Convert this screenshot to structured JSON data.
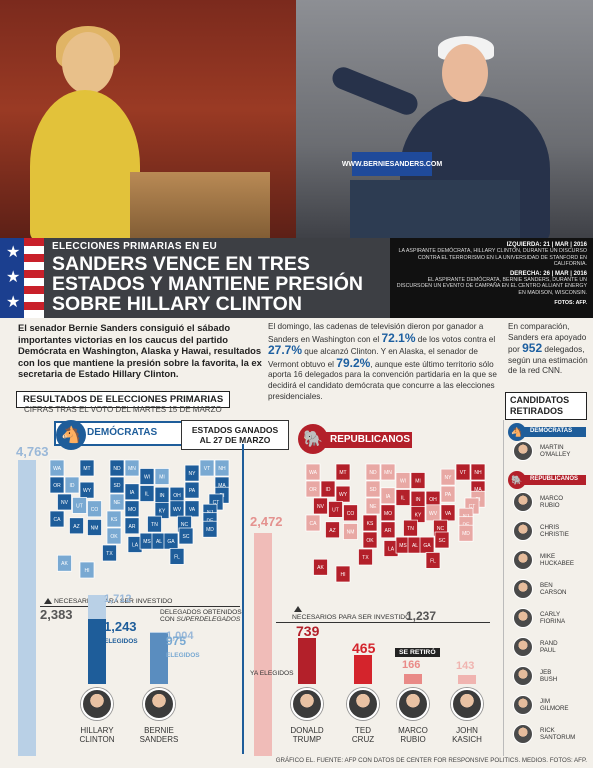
{
  "hero": {
    "sign_text": "WWW.BERNIESANDERS.COM",
    "kicker": "ELECCIONES PRIMARIAS EN EU",
    "headline": "SANDERS VENCE EN TRES ESTADOS Y MANTIENE PRESIÓN SOBRE HILLARY CLINTON",
    "caption_left_head": "IZQUIERDA: 21 | MAR | 2016",
    "caption_left": "LA ASPIRANTE DEMÓCRATA, HILLARY CLINTON, DURANTE UN DISCURSO CONTRA EL TERRORISMO EN LA UNIVERSIDAD DE STANFORD EN CALIFORNIA.",
    "caption_right_head": "DERECHA: 26 | MAR | 2016",
    "caption_right": "EL ASPIRANTE DEMÓCRATA, BERNIE SANDERS, DURANTE UN DISCURSOEN UN EVENTO DE CAMPAÑA EN EL CENTRO ALLIANT ENERGY EN MADISON, WISCONSIN.",
    "credit": "FOTOS: AFP."
  },
  "lede": "El senador Bernie Sanders consiguió el sábado importantes victorias en los caucus del partido Demócrata en Washington, Alaska y Hawai, resultados con los que mantiene la presión sobre la favorita, la ex secretaria de Estado Hillary Clinton.",
  "col2": {
    "a": "El domingo, las cadenas de televisión dieron por ganador a Sanders en Washington con el ",
    "p1": "72.1%",
    "b": " de los votos contra el ",
    "p2": "27.7%",
    "c": " que alcanzó Clinton. Y en Alaska, el senador de Vermont obtuvo el ",
    "p3": "79.2%",
    "d": ", aunque este último territorio sólo aporta 16 delegados para la convención partidaria en la que se decidirá el candidato demócrata que concurre a las elecciones presidenciales."
  },
  "col3": {
    "a": "En comparación, Sanders era apoyado por ",
    "n": "952",
    "b": " delegados, según una estimación de la red CNN."
  },
  "graphic": {
    "title": "RESULTADOS DE ELECCIONES PRIMARIAS",
    "subtitle": "CIFRAS TRAS EL VOTO DEL MARTES 15 DE MARZO",
    "estados": "ESTADOS GANADOS AL 27 DE MARZO",
    "dem_label": "DEMÓCRATAS",
    "rep_label": "REPUBLICANOS",
    "dem_total": "4,763",
    "rep_total": "2,472",
    "need_label_dem": "NECESARIOS PARA SER INVESTIDO",
    "need_label_rep": "NECESARIOS PARA SER INVESTIDO",
    "dem_need": "2,383",
    "rep_need": "1,237",
    "super_label_a": "DELEGADOS OBTENIDOS",
    "super_label_b": "CON",
    "super_label_c": "SUPERDELEGADOS",
    "elegidos": "ELEGIDOS",
    "ya_elegidos": "YA ELEGIDOS",
    "se_retiro": "SE RETIRÓ"
  },
  "chart_data": [
    {
      "type": "bar",
      "series": [
        {
          "name": "CON SUPERDELEGADOS",
          "values": [
            1712,
            1004
          ]
        },
        {
          "name": "ELEGIDOS",
          "values": [
            1243,
            975
          ]
        }
      ],
      "categories": [
        "HILLARY CLINTON",
        "BERNIE SANDERS"
      ],
      "totals": {
        "dem_total": 4763,
        "needed": 2383
      }
    },
    {
      "type": "bar",
      "categories": [
        "DONALD TRUMP",
        "TED CRUZ",
        "MARCO RUBIO",
        "JOHN KASICH"
      ],
      "values": [
        739,
        465,
        166,
        143
      ],
      "totals": {
        "rep_total": 2472,
        "needed": 1237
      }
    }
  ],
  "dem_bars": [
    {
      "super": "1,712",
      "elected": "1,243",
      "first": "HILLARY",
      "last": "CLINTON"
    },
    {
      "super": "1,004",
      "elected": "975",
      "first": "BERNIE",
      "last": "SANDERS"
    }
  ],
  "rep_bars": [
    {
      "value": "739",
      "first": "DONALD",
      "last": "TRUMP"
    },
    {
      "value": "465",
      "first": "TED",
      "last": "CRUZ"
    },
    {
      "value": "166",
      "first": "MARCO",
      "last": "RUBIO"
    },
    {
      "value": "143",
      "first": "JOHN",
      "last": "KASICH"
    }
  ],
  "map_labels": {
    "dem": [
      "WA",
      "OR",
      "MT",
      "ND",
      "SD",
      "MN",
      "WI",
      "MI",
      "NY",
      "VT",
      "NH",
      "MA",
      "RI",
      "CT",
      "NJ",
      "DE",
      "MD",
      "ID",
      "WY",
      "NE",
      "IA",
      "IL",
      "IN",
      "OH",
      "PA",
      "NV",
      "UT",
      "CO",
      "KS",
      "MO",
      "KY",
      "WV",
      "VA",
      "CA",
      "AZ",
      "NM",
      "OK",
      "AR",
      "TN",
      "NC",
      "SC",
      "TX",
      "LA",
      "MS",
      "AL",
      "GA",
      "FL",
      "AK",
      "HI"
    ],
    "rep": [
      "WA",
      "OR",
      "MT",
      "ND",
      "SD",
      "MN",
      "WI",
      "MI",
      "NY",
      "VT",
      "NH",
      "MA",
      "RI",
      "CT",
      "NJ",
      "DE",
      "MD",
      "ID",
      "WY",
      "NE",
      "IA",
      "IL",
      "IN",
      "OH",
      "PA",
      "NV",
      "UT",
      "CO",
      "KS",
      "MO",
      "KY",
      "WV",
      "VA",
      "CA",
      "AZ",
      "NM",
      "OK",
      "AR",
      "TN",
      "NC",
      "SC",
      "TX",
      "LA",
      "MS",
      "AL",
      "GA",
      "FL",
      "AK",
      "HI"
    ]
  },
  "sidebar": {
    "title": "CANDIDATOS RETIRADOS",
    "dem_label": "DEMÓCRATAS",
    "rep_label": "REPUBLICANOS",
    "dem": [
      {
        "a": "MARTIN",
        "b": "O'MALLEY"
      }
    ],
    "rep": [
      {
        "a": "MARCO",
        "b": "RUBIO"
      },
      {
        "a": "CHRIS",
        "b": "CHRISTIE"
      },
      {
        "a": "MIKE",
        "b": "HUCKABEE"
      },
      {
        "a": "BEN",
        "b": "CARSON"
      },
      {
        "a": "CARLY",
        "b": "FIORINA"
      },
      {
        "a": "RAND",
        "b": "PAUL"
      },
      {
        "a": "JEB",
        "b": "BUSH"
      },
      {
        "a": "JIM",
        "b": "GILMORE"
      },
      {
        "a": "RICK",
        "b": "SANTORUM"
      }
    ]
  },
  "footer": "GRÁFICO EL. FUENTE: AFP CON DATOS DE CENTER FOR RESPONSIVE POLITICS. MEDIOS. FOTOS: AFP.",
  "colors": {
    "dem": "#1e5d9a",
    "rep": "#b3202a"
  }
}
